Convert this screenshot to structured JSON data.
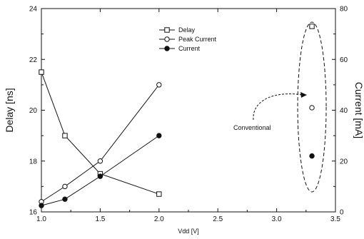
{
  "chart_data": {
    "type": "line",
    "x_axis": {
      "label": "Vdd [V]",
      "min": 1.0,
      "max": 3.5,
      "ticks": [
        1.0,
        1.5,
        2.0,
        2.5,
        3.0,
        3.5
      ],
      "tick_labels": [
        "1.0",
        "1.5",
        "2.0",
        "2.5",
        "3.0",
        "3.5"
      ]
    },
    "y_left": {
      "label": "Delay [ns]",
      "min": 16,
      "max": 24,
      "ticks": [
        16,
        18,
        20,
        22,
        24
      ],
      "tick_labels": [
        "16",
        "18",
        "20",
        "22",
        "24"
      ]
    },
    "y_right": {
      "label": "Current [mA]",
      "min": 0,
      "max": 80,
      "ticks": [
        0,
        20,
        40,
        60,
        80
      ],
      "tick_labels": [
        "0",
        "20",
        "40",
        "60",
        "80"
      ]
    },
    "grid": false,
    "legend_position": "top-center",
    "series": [
      {
        "name": "Delay",
        "axis": "left",
        "marker": "open-square",
        "x": [
          1.0,
          1.2,
          1.5,
          2.0
        ],
        "y": [
          21.5,
          19.0,
          17.5,
          16.7
        ]
      },
      {
        "name": "Peak Current",
        "axis": "right",
        "marker": "open-circle",
        "x": [
          1.0,
          1.2,
          1.5,
          2.0
        ],
        "y": [
          4,
          10,
          20,
          50
        ]
      },
      {
        "name": "Current",
        "axis": "right",
        "marker": "filled-circle",
        "x": [
          1.0,
          1.2,
          1.5,
          2.0
        ],
        "y": [
          2.5,
          5,
          14,
          30
        ]
      }
    ],
    "conventional_points": [
      {
        "series": "Delay",
        "x": 3.3,
        "y": 23.3
      },
      {
        "series": "Peak Current",
        "x": 3.3,
        "y": 41
      },
      {
        "series": "Current",
        "x": 3.3,
        "y": 22
      }
    ],
    "annotation": {
      "text": "Conventional"
    }
  }
}
